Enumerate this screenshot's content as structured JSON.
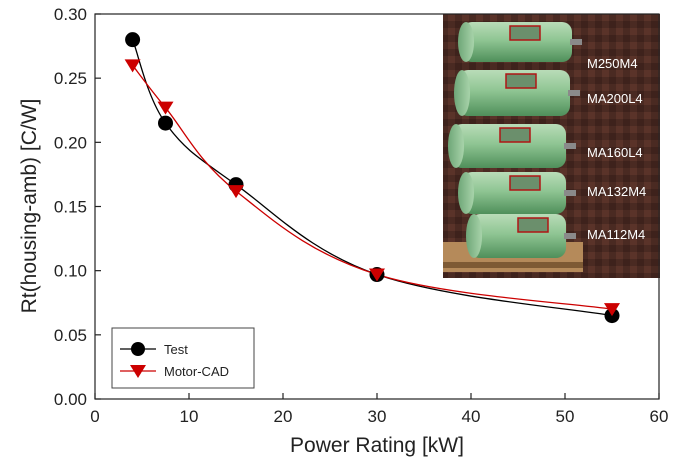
{
  "chart_data": {
    "type": "scatter",
    "title": "",
    "xlabel": "Power Rating [kW]",
    "ylabel": "Rt(housing-amb) [C/W]",
    "xlim": [
      0,
      60
    ],
    "ylim": [
      0,
      0.3
    ],
    "xticks": [
      "0",
      "10",
      "20",
      "30",
      "40",
      "50",
      "60"
    ],
    "yticks": [
      "0.00",
      "0.05",
      "0.10",
      "0.15",
      "0.20",
      "0.25",
      "0.30"
    ],
    "grid": false,
    "legend_position": "bottom-left",
    "series": [
      {
        "name": "Test",
        "marker": "circle",
        "color": "#000000",
        "x": [
          4,
          7.5,
          15,
          30,
          55
        ],
        "y": [
          0.28,
          0.215,
          0.167,
          0.097,
          0.065
        ]
      },
      {
        "name": "Motor-CAD",
        "marker": "triangle-down",
        "color": "#cc0000",
        "x": [
          4,
          7.5,
          15,
          30,
          55
        ],
        "y": [
          0.26,
          0.227,
          0.162,
          0.097,
          0.07
        ]
      }
    ]
  },
  "photo": {
    "labels": [
      "M250M4",
      "MA200L4",
      "MA160L4",
      "MA132M4",
      "MA112M4"
    ]
  }
}
